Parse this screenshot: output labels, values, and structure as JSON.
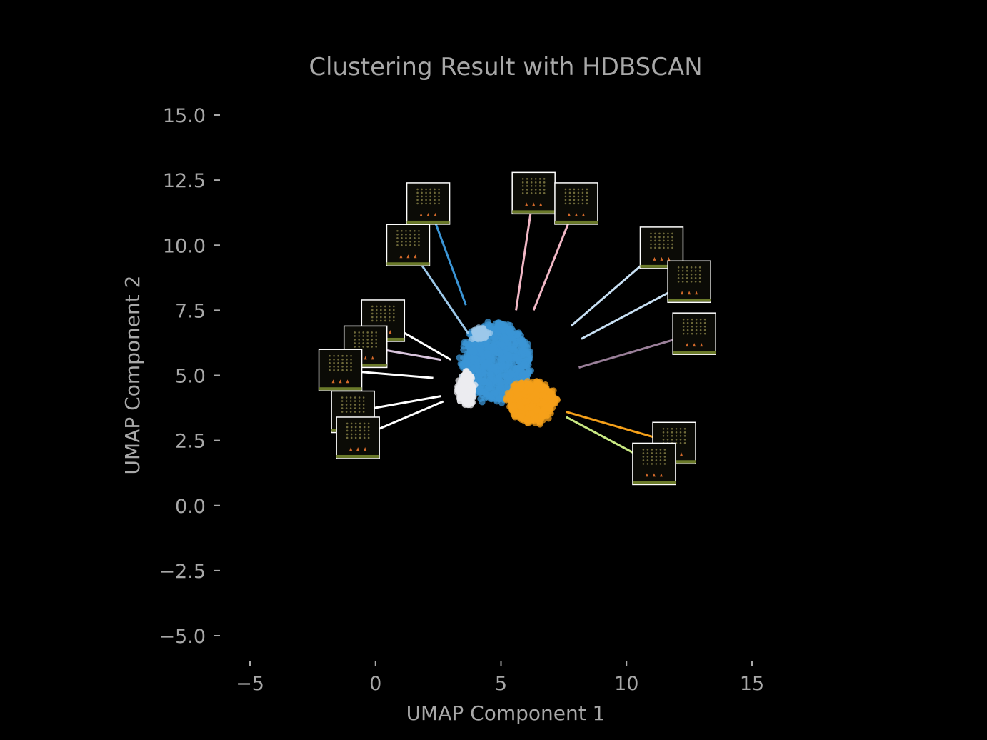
{
  "colors": {
    "background": "#000000",
    "text": "#a8a8a8",
    "cluster_blue": "#3b95d6",
    "cluster_orange": "#f5a019",
    "cluster_white": "#ececf0",
    "cluster_light_blue": "#9cc8ea",
    "cluster_pink": "#f2b8c6",
    "cluster_green": "#c8e882",
    "cluster_mauve": "#9a7f99"
  },
  "chart_data": {
    "type": "scatter",
    "title": "Clustering Result with HDBSCAN",
    "xlabel": "UMAP Component 1",
    "ylabel": "UMAP Component 2",
    "xlim": [
      -5,
      15
    ],
    "ylim": [
      -5,
      15
    ],
    "x_ticks": [
      -5,
      0,
      5,
      10,
      15
    ],
    "y_ticks": [
      15.0,
      12.5,
      10.0,
      7.5,
      5.0,
      2.5,
      0.0,
      -2.5,
      -5.0
    ],
    "x_tick_labels": [
      "−5",
      "0",
      "5",
      "10",
      "15"
    ],
    "y_tick_labels": [
      "15.0",
      "12.5",
      "10.0",
      "7.5",
      "5.0",
      "2.5",
      "0.0",
      "−2.5",
      "−5.0"
    ],
    "grid": false,
    "legend": "none",
    "clusters": [
      {
        "color": "#3b95d6",
        "center": [
          4.8,
          5.5
        ],
        "spread": [
          2.7,
          3.0
        ],
        "points": 900
      },
      {
        "color": "#f5a019",
        "center": [
          6.2,
          4.0
        ],
        "spread": [
          1.8,
          1.5
        ],
        "points": 650
      },
      {
        "color": "#ececf0",
        "center": [
          3.6,
          4.5
        ],
        "spread": [
          0.5,
          1.2
        ],
        "points": 260
      },
      {
        "color": "#9cc8ea",
        "center": [
          4.2,
          6.6
        ],
        "spread": [
          0.4,
          0.35
        ],
        "points": 90
      }
    ],
    "annotations": [
      {
        "color": "#3b95d6",
        "point": [
          3.6,
          7.7
        ],
        "thumb": [
          2.1,
          11.6
        ]
      },
      {
        "color": "#9cc8ea",
        "point": [
          3.7,
          6.6
        ],
        "thumb": [
          1.3,
          10.0
        ]
      },
      {
        "color": "#f2b8c6",
        "point": [
          5.6,
          7.5
        ],
        "thumb": [
          6.3,
          12.0
        ]
      },
      {
        "color": "#f2b8c6",
        "point": [
          6.3,
          7.5
        ],
        "thumb": [
          8.0,
          11.6
        ]
      },
      {
        "color": "#c8e0f4",
        "point": [
          7.8,
          6.9
        ],
        "thumb": [
          11.4,
          9.9
        ]
      },
      {
        "color": "#c8e0f4",
        "point": [
          8.2,
          6.4
        ],
        "thumb": [
          12.5,
          8.6
        ]
      },
      {
        "color": "#9a7f99",
        "point": [
          8.1,
          5.3
        ],
        "thumb": [
          12.7,
          6.6
        ]
      },
      {
        "color": "#f5a019",
        "point": [
          7.6,
          3.6
        ],
        "thumb": [
          11.9,
          2.4
        ]
      },
      {
        "color": "#c8e882",
        "point": [
          7.6,
          3.4
        ],
        "thumb": [
          11.1,
          1.6
        ]
      },
      {
        "color": "#ffffff",
        "point": [
          3.0,
          5.6
        ],
        "thumb": [
          0.3,
          7.1
        ]
      },
      {
        "color": "#d8c4dc",
        "point": [
          2.6,
          5.6
        ],
        "thumb": [
          -0.4,
          6.1
        ]
      },
      {
        "color": "#ffffff",
        "point": [
          2.3,
          4.9
        ],
        "thumb": [
          -1.4,
          5.2
        ]
      },
      {
        "color": "#ffffff",
        "point": [
          2.6,
          4.2
        ],
        "thumb": [
          -0.9,
          3.6
        ]
      },
      {
        "color": "#ffffff",
        "point": [
          2.7,
          4.0
        ],
        "thumb": [
          -0.7,
          2.6
        ]
      }
    ]
  }
}
